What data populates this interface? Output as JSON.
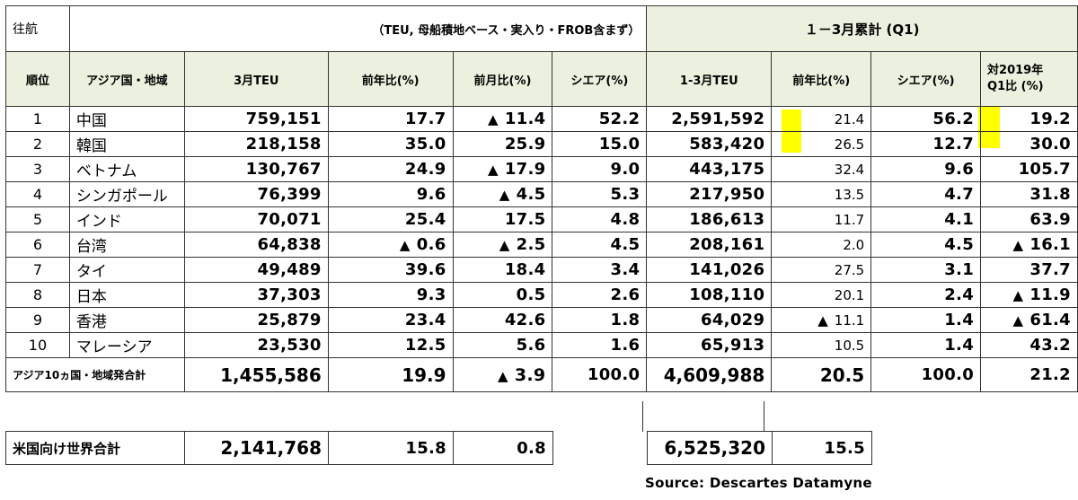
{
  "header": {
    "direction_label": "往航",
    "basis_note": "（TEU, 母船積地ベース・実入り・FROB含まず）",
    "q1_title": "１－3月累計 (Q1)",
    "columns": {
      "rank": "順位",
      "region": "アジア国・地域",
      "mar_teu": "3月TEU",
      "yoy": "前年比(%)",
      "mom": "前月比(%)",
      "share": "シエア(%)",
      "q1_teu": "1-3月TEU",
      "q1_yoy": "前年比(%)",
      "q1_share": "シエア(%)",
      "vs2019_line1": "対2019年",
      "vs2019_line2": "Q1比 (%)"
    }
  },
  "rows": [
    {
      "rank": "1",
      "name": "中国",
      "mar_teu": "759,151",
      "yoy": "17.7",
      "mom": "11.4",
      "mom_neg": true,
      "share": "52.2",
      "q1_teu": "2,591,592",
      "q1_yoy": "21.4",
      "q1_share": "56.2",
      "vs2019": "19.2"
    },
    {
      "rank": "2",
      "name": "韓国",
      "mar_teu": "218,158",
      "yoy": "35.0",
      "mom": "25.9",
      "share": "15.0",
      "q1_teu": "583,420",
      "q1_yoy": "26.5",
      "q1_share": "12.7",
      "vs2019": "30.0"
    },
    {
      "rank": "3",
      "name": "ベトナム",
      "mar_teu": "130,767",
      "yoy": "24.9",
      "mom": "17.9",
      "mom_neg": true,
      "share": "9.0",
      "q1_teu": "443,175",
      "q1_yoy": "32.4",
      "q1_share": "9.6",
      "vs2019": "105.7"
    },
    {
      "rank": "4",
      "name": "シンガポール",
      "mar_teu": "76,399",
      "yoy": "9.6",
      "mom": "4.5",
      "mom_neg": true,
      "share": "5.3",
      "q1_teu": "217,950",
      "q1_yoy": "13.5",
      "q1_share": "4.7",
      "vs2019": "31.8"
    },
    {
      "rank": "5",
      "name": "インド",
      "mar_teu": "70,071",
      "yoy": "25.4",
      "mom": "17.5",
      "share": "4.8",
      "q1_teu": "186,613",
      "q1_yoy": "11.7",
      "q1_share": "4.1",
      "vs2019": "63.9"
    },
    {
      "rank": "6",
      "name": "台湾",
      "mar_teu": "64,838",
      "yoy": "0.6",
      "yoy_neg": true,
      "mom": "2.5",
      "mom_neg": true,
      "share": "4.5",
      "q1_teu": "208,161",
      "q1_yoy": "2.0",
      "q1_share": "4.5",
      "vs2019": "16.1",
      "vs2019_neg": true
    },
    {
      "rank": "7",
      "name": "タイ",
      "mar_teu": "49,489",
      "yoy": "39.6",
      "mom": "18.4",
      "share": "3.4",
      "q1_teu": "141,026",
      "q1_yoy": "27.5",
      "q1_share": "3.1",
      "vs2019": "37.7"
    },
    {
      "rank": "8",
      "name": "日本",
      "mar_teu": "37,303",
      "yoy": "9.3",
      "mom": "0.5",
      "share": "2.6",
      "q1_teu": "108,110",
      "q1_yoy": "20.1",
      "q1_share": "2.4",
      "vs2019": "11.9",
      "vs2019_neg": true
    },
    {
      "rank": "9",
      "name": "香港",
      "mar_teu": "25,879",
      "yoy": "23.4",
      "mom": "42.6",
      "share": "1.8",
      "q1_teu": "64,029",
      "q1_yoy": "11.1",
      "q1_yoy_neg": true,
      "q1_share": "1.4",
      "vs2019": "61.4",
      "vs2019_neg": true
    },
    {
      "rank": "10",
      "name": "マレーシア",
      "mar_teu": "23,530",
      "yoy": "12.5",
      "mom": "5.6",
      "share": "1.6",
      "q1_teu": "65,913",
      "q1_yoy": "10.5",
      "q1_share": "1.4",
      "vs2019": "43.2"
    }
  ],
  "total": {
    "label": "アジア10ヵ国・地域発合計",
    "mar_teu": "1,455,586",
    "yoy": "19.9",
    "mom": "3.9",
    "mom_neg": true,
    "share": "100.0",
    "q1_teu": "4,609,988",
    "q1_yoy": "20.5",
    "q1_share": "100.0",
    "vs2019": "21.2"
  },
  "us_total": {
    "label": "米国向け世界合計",
    "mar_teu": "2,141,768",
    "yoy": "15.8",
    "mom": "0.8",
    "q1_teu": "6,525,320",
    "q1_yoy": "15.5"
  },
  "source": "Source: Descartes Datamyne",
  "negative_marker": "▲",
  "highlight_color": "#ffff00",
  "header_fill_color": "#ebf1de"
}
